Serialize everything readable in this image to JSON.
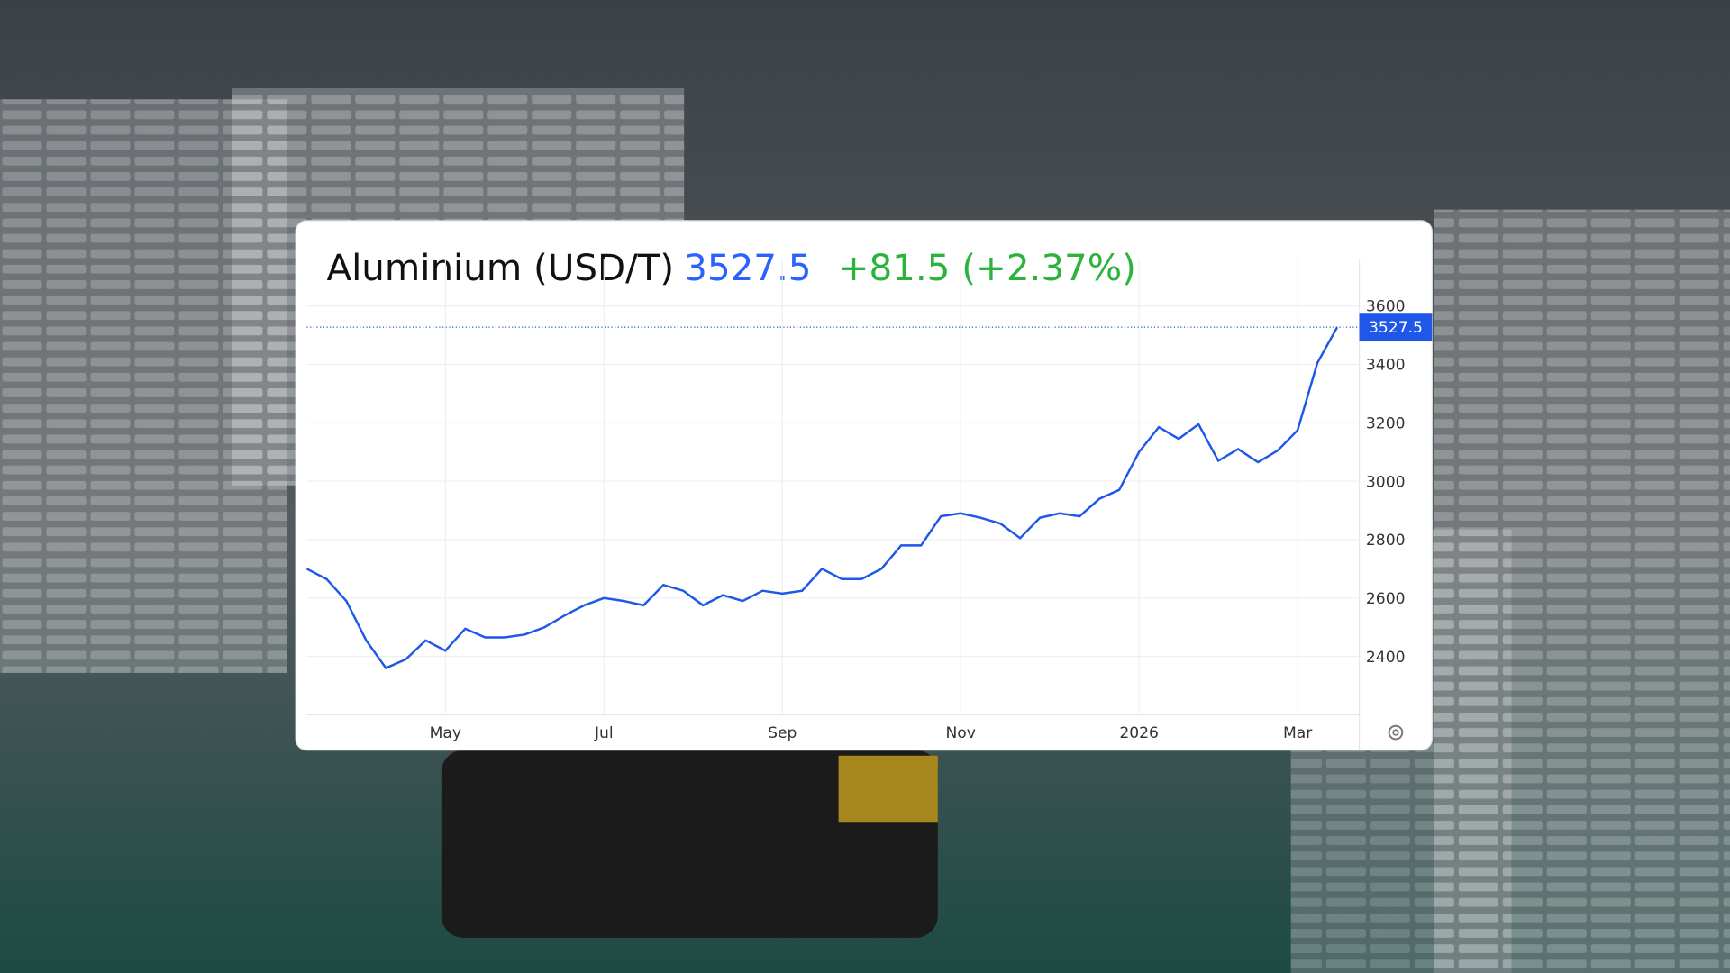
{
  "chart_data": {
    "type": "line",
    "title": "Aluminium (USD/T)",
    "price": 3527.5,
    "change": "+81.5 (+2.37%)",
    "categories": [
      null,
      null,
      null,
      null,
      null,
      null,
      null,
      "May",
      null,
      null,
      null,
      null,
      null,
      null,
      null,
      "Jul",
      null,
      null,
      null,
      null,
      null,
      null,
      null,
      null,
      "Sep",
      null,
      null,
      null,
      null,
      null,
      null,
      null,
      null,
      "Nov",
      null,
      null,
      null,
      null,
      null,
      null,
      null,
      null,
      "2026",
      null,
      null,
      null,
      null,
      null,
      null,
      null,
      "Mar",
      null,
      null
    ],
    "values": [
      2700,
      2665,
      2590,
      2455,
      2360,
      2390,
      2455,
      2420,
      2495,
      2465,
      2465,
      2475,
      2500,
      2540,
      2575,
      2600,
      2590,
      2575,
      2645,
      2625,
      2575,
      2610,
      2590,
      2625,
      2615,
      2625,
      2700,
      2665,
      2665,
      2700,
      2780,
      2780,
      2880,
      2890,
      2875,
      2855,
      2805,
      2875,
      2890,
      2880,
      2940,
      2970,
      3100,
      3185,
      3145,
      3195,
      3070,
      3110,
      3065,
      3105,
      3175,
      3405,
      3527.5
    ],
    "color": "#1f57e8",
    "ylim": [
      2200,
      3760
    ],
    "yticks": [
      2400,
      2600,
      2800,
      3000,
      3200,
      3400,
      3600
    ],
    "grid": true
  }
}
